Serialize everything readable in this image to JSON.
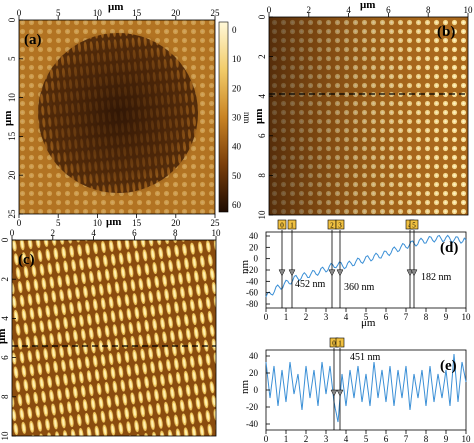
{
  "colors": {
    "afm_dark": "#3b1d06",
    "afm_mid": "#9a5a12",
    "afm_light": "#f3d27a",
    "afm_bright": "#fff4c8",
    "profile_line": "#3a8fd6",
    "marker_fill": "#f0c040"
  },
  "panels": {
    "a": {
      "label": "(a)",
      "axis_label_x": "μm",
      "axis_label_y": "μm",
      "x_ticks": [
        "0",
        "5",
        "10",
        "15",
        "20",
        "25"
      ],
      "y_ticks": [
        "0",
        "5",
        "10",
        "15",
        "20",
        "25"
      ],
      "colorbar": {
        "unit": "nm",
        "ticks": [
          "0",
          "10",
          "20",
          "30",
          "40",
          "50",
          "60"
        ]
      }
    },
    "b": {
      "label": "(b)",
      "axis_label_x": "μm",
      "axis_label_y": "μm",
      "x_ticks": [
        "0",
        "2",
        "4",
        "6",
        "8",
        "10"
      ],
      "y_ticks": [
        "0",
        "2",
        "4",
        "6",
        "8",
        "10"
      ]
    },
    "c": {
      "label": "(c)",
      "axis_label_x": "μm",
      "axis_label_y": "μm",
      "x_ticks": [
        "0",
        "2",
        "4",
        "6",
        "8",
        "10"
      ],
      "y_ticks": [
        "0",
        "2",
        "4",
        "6",
        "8",
        "10"
      ]
    },
    "d": {
      "label": "(d)",
      "axis_label_y": "nm",
      "axis_label_x": "μm",
      "x_ticks": [
        "0",
        "1",
        "2",
        "3",
        "4",
        "5",
        "6",
        "7",
        "8",
        "9",
        "10"
      ],
      "y_ticks": [
        "40",
        "20",
        "0",
        "-20",
        "-40",
        "-60",
        "-80"
      ],
      "marker_labels": [
        "0",
        "1",
        "2",
        "3",
        "4",
        "5"
      ],
      "annotations": [
        "452 nm",
        "360 nm",
        "182 nm"
      ]
    },
    "e": {
      "label": "(e)",
      "axis_label_y": "nm",
      "axis_label_x": "μm",
      "x_ticks": [
        "0",
        "1",
        "2",
        "3",
        "4",
        "5",
        "6",
        "7",
        "8",
        "9",
        "10"
      ],
      "y_ticks": [
        "40",
        "20",
        "0",
        "-20",
        "-40"
      ],
      "marker_labels": [
        "0",
        "1"
      ],
      "annotations": [
        "451 nm"
      ]
    }
  },
  "chart_data": [
    {
      "type": "line",
      "panel": "d",
      "xlabel": "μm",
      "ylabel": "nm",
      "xlim": [
        0,
        10
      ],
      "ylim": [
        -90,
        50
      ],
      "x": [
        0,
        0.5,
        1,
        1.5,
        2,
        2.5,
        3,
        3.5,
        4,
        4.5,
        5,
        5.5,
        6,
        6.5,
        7,
        7.5,
        8,
        8.5,
        9,
        9.5,
        10
      ],
      "values": [
        -70,
        -55,
        -45,
        -35,
        -30,
        -25,
        -18,
        -10,
        -12,
        -5,
        0,
        5,
        10,
        18,
        25,
        30,
        35,
        38,
        38,
        36,
        35
      ],
      "markers_x": [
        0.8,
        1.3,
        3.3,
        3.7,
        7.2,
        7.4
      ]
    },
    {
      "type": "line",
      "panel": "e",
      "xlabel": "μm",
      "ylabel": "nm",
      "xlim": [
        0,
        10
      ],
      "ylim": [
        -50,
        50
      ],
      "x": [
        0,
        0.2,
        0.4,
        0.6,
        0.8,
        1,
        1.2,
        1.4,
        1.6,
        1.8,
        2,
        2.2,
        2.4,
        2.6,
        2.8,
        3,
        3.2,
        3.4,
        3.6,
        3.8,
        4,
        4.2,
        4.4,
        4.6,
        4.8,
        5,
        5.2,
        5.4,
        5.6,
        5.8,
        6,
        6.2,
        6.4,
        6.6,
        6.8,
        7,
        7.2,
        7.4,
        7.6,
        7.8,
        8,
        8.2,
        8.4,
        8.6,
        8.8,
        9,
        9.2,
        9.4,
        9.6,
        9.8,
        10
      ],
      "values": [
        35,
        -10,
        30,
        -20,
        25,
        -15,
        35,
        -5,
        20,
        -25,
        30,
        -10,
        25,
        -20,
        35,
        -5,
        30,
        -15,
        -40,
        20,
        -20,
        25,
        -10,
        30,
        -15,
        20,
        -20,
        35,
        -10,
        25,
        -15,
        30,
        -20,
        25,
        -10,
        30,
        -25,
        20,
        -10,
        25,
        -20,
        30,
        -15,
        20,
        -10,
        25,
        -20,
        45,
        -15,
        35,
        10
      ],
      "markers_x": [
        3.4,
        3.7
      ]
    }
  ]
}
